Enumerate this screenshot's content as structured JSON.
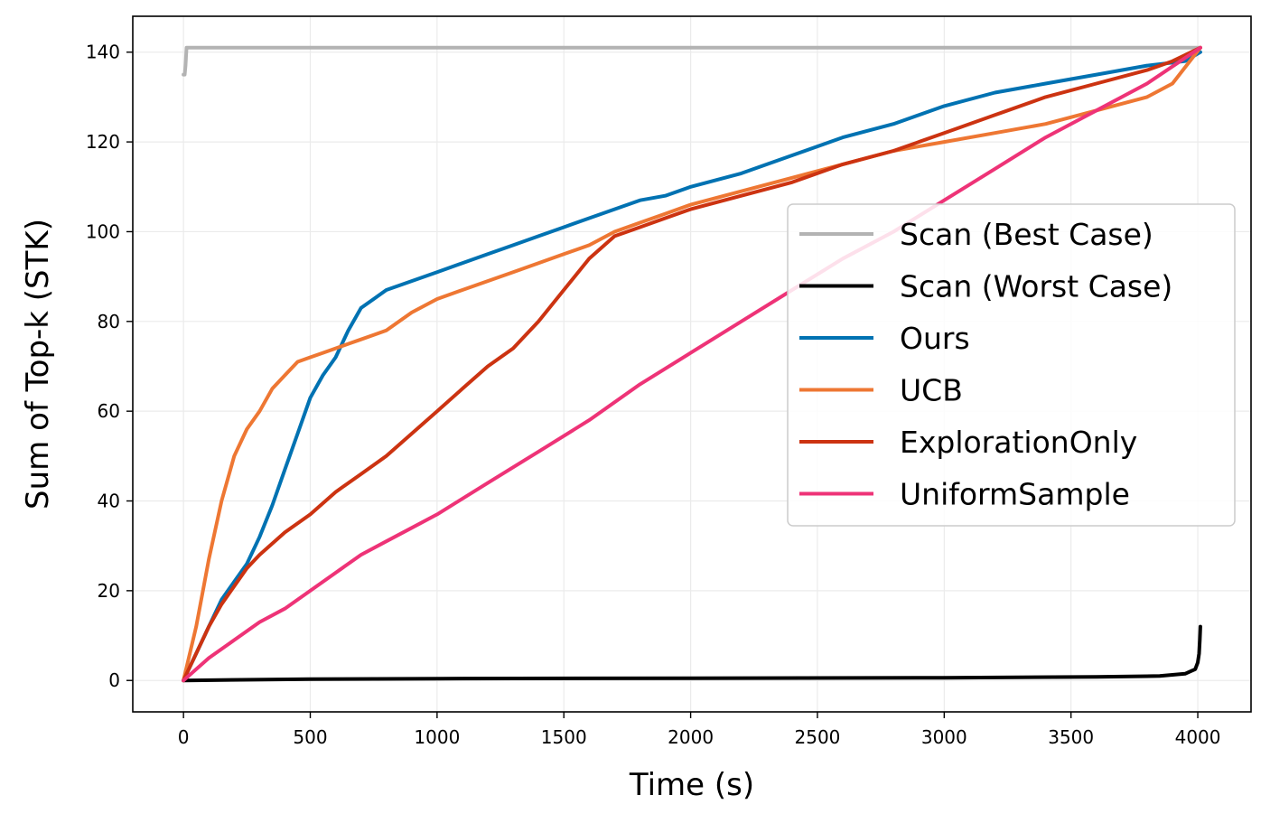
{
  "chart_data": {
    "type": "line",
    "xlabel": "Time (s)",
    "ylabel": "Sum of Top-k (STK)",
    "xlim": [
      -200,
      4210
    ],
    "ylim": [
      -7,
      148
    ],
    "xticks": [
      0,
      500,
      1000,
      1500,
      2000,
      2500,
      3000,
      3500,
      4000
    ],
    "yticks": [
      0,
      20,
      40,
      60,
      80,
      100,
      120,
      140
    ],
    "grid": true,
    "legend_position": "center-right",
    "series": [
      {
        "name": "Scan (Best Case)",
        "color": "#b3b3b3",
        "x": [
          0,
          5,
          8,
          12,
          4010
        ],
        "y": [
          135,
          135,
          137,
          141,
          141
        ]
      },
      {
        "name": "Scan (Worst Case)",
        "color": "#000000",
        "x": [
          0,
          500,
          1000,
          2000,
          3000,
          3600,
          3850,
          3950,
          3990,
          4000,
          4005,
          4008,
          4010
        ],
        "y": [
          0,
          0.3,
          0.4,
          0.5,
          0.6,
          0.8,
          1.0,
          1.5,
          2.5,
          4.0,
          6,
          9,
          12
        ]
      },
      {
        "name": "Ours",
        "color": "#0072b2",
        "x": [
          0,
          50,
          100,
          150,
          200,
          250,
          300,
          350,
          400,
          450,
          500,
          550,
          600,
          650,
          700,
          750,
          800,
          900,
          1000,
          1100,
          1200,
          1300,
          1400,
          1500,
          1600,
          1700,
          1800,
          1900,
          2000,
          2200,
          2400,
          2600,
          2800,
          3000,
          3200,
          3400,
          3600,
          3800,
          3950,
          4010
        ],
        "y": [
          0,
          6,
          12,
          18,
          22,
          26,
          32,
          39,
          47,
          55,
          63,
          68,
          72,
          78,
          83,
          85,
          87,
          89,
          91,
          93,
          95,
          97,
          99,
          101,
          103,
          105,
          107,
          108,
          110,
          113,
          117,
          121,
          124,
          128,
          131,
          133,
          135,
          137,
          138,
          140
        ]
      },
      {
        "name": "UCB",
        "color": "#ee7733",
        "x": [
          0,
          50,
          100,
          150,
          200,
          250,
          300,
          350,
          400,
          450,
          500,
          550,
          600,
          650,
          700,
          750,
          800,
          900,
          1000,
          1100,
          1200,
          1300,
          1400,
          1500,
          1600,
          1700,
          1800,
          1900,
          2000,
          2200,
          2400,
          2600,
          2800,
          3000,
          3200,
          3400,
          3600,
          3800,
          3900,
          4010
        ],
        "y": [
          0,
          12,
          27,
          40,
          50,
          56,
          60,
          65,
          68,
          71,
          72,
          73,
          74,
          75,
          76,
          77,
          78,
          82,
          85,
          87,
          89,
          91,
          93,
          95,
          97,
          100,
          102,
          104,
          106,
          109,
          112,
          115,
          118,
          120,
          122,
          124,
          127,
          130,
          133,
          141
        ]
      },
      {
        "name": "ExplorationOnly",
        "color": "#cc3311",
        "x": [
          0,
          50,
          100,
          150,
          200,
          250,
          300,
          400,
          500,
          600,
          700,
          800,
          900,
          1000,
          1100,
          1200,
          1300,
          1400,
          1500,
          1600,
          1700,
          1800,
          1900,
          2000,
          2200,
          2400,
          2600,
          2800,
          3000,
          3200,
          3400,
          3600,
          3800,
          3900,
          4010
        ],
        "y": [
          0,
          6,
          12,
          17,
          21,
          25,
          28,
          33,
          37,
          42,
          46,
          50,
          55,
          60,
          65,
          70,
          74,
          80,
          87,
          94,
          99,
          101,
          103,
          105,
          108,
          111,
          115,
          118,
          122,
          126,
          130,
          133,
          136,
          138,
          141
        ]
      },
      {
        "name": "UniformSample",
        "color": "#ee3377",
        "x": [
          0,
          100,
          200,
          300,
          400,
          500,
          600,
          700,
          800,
          900,
          1000,
          1200,
          1400,
          1600,
          1800,
          2000,
          2200,
          2400,
          2600,
          2800,
          3000,
          3200,
          3400,
          3600,
          3800,
          4010
        ],
        "y": [
          0,
          5,
          9,
          13,
          16,
          20,
          24,
          28,
          31,
          34,
          37,
          44,
          51,
          58,
          66,
          73,
          80,
          87,
          94,
          100,
          107,
          114,
          121,
          127,
          133,
          141
        ]
      }
    ]
  }
}
